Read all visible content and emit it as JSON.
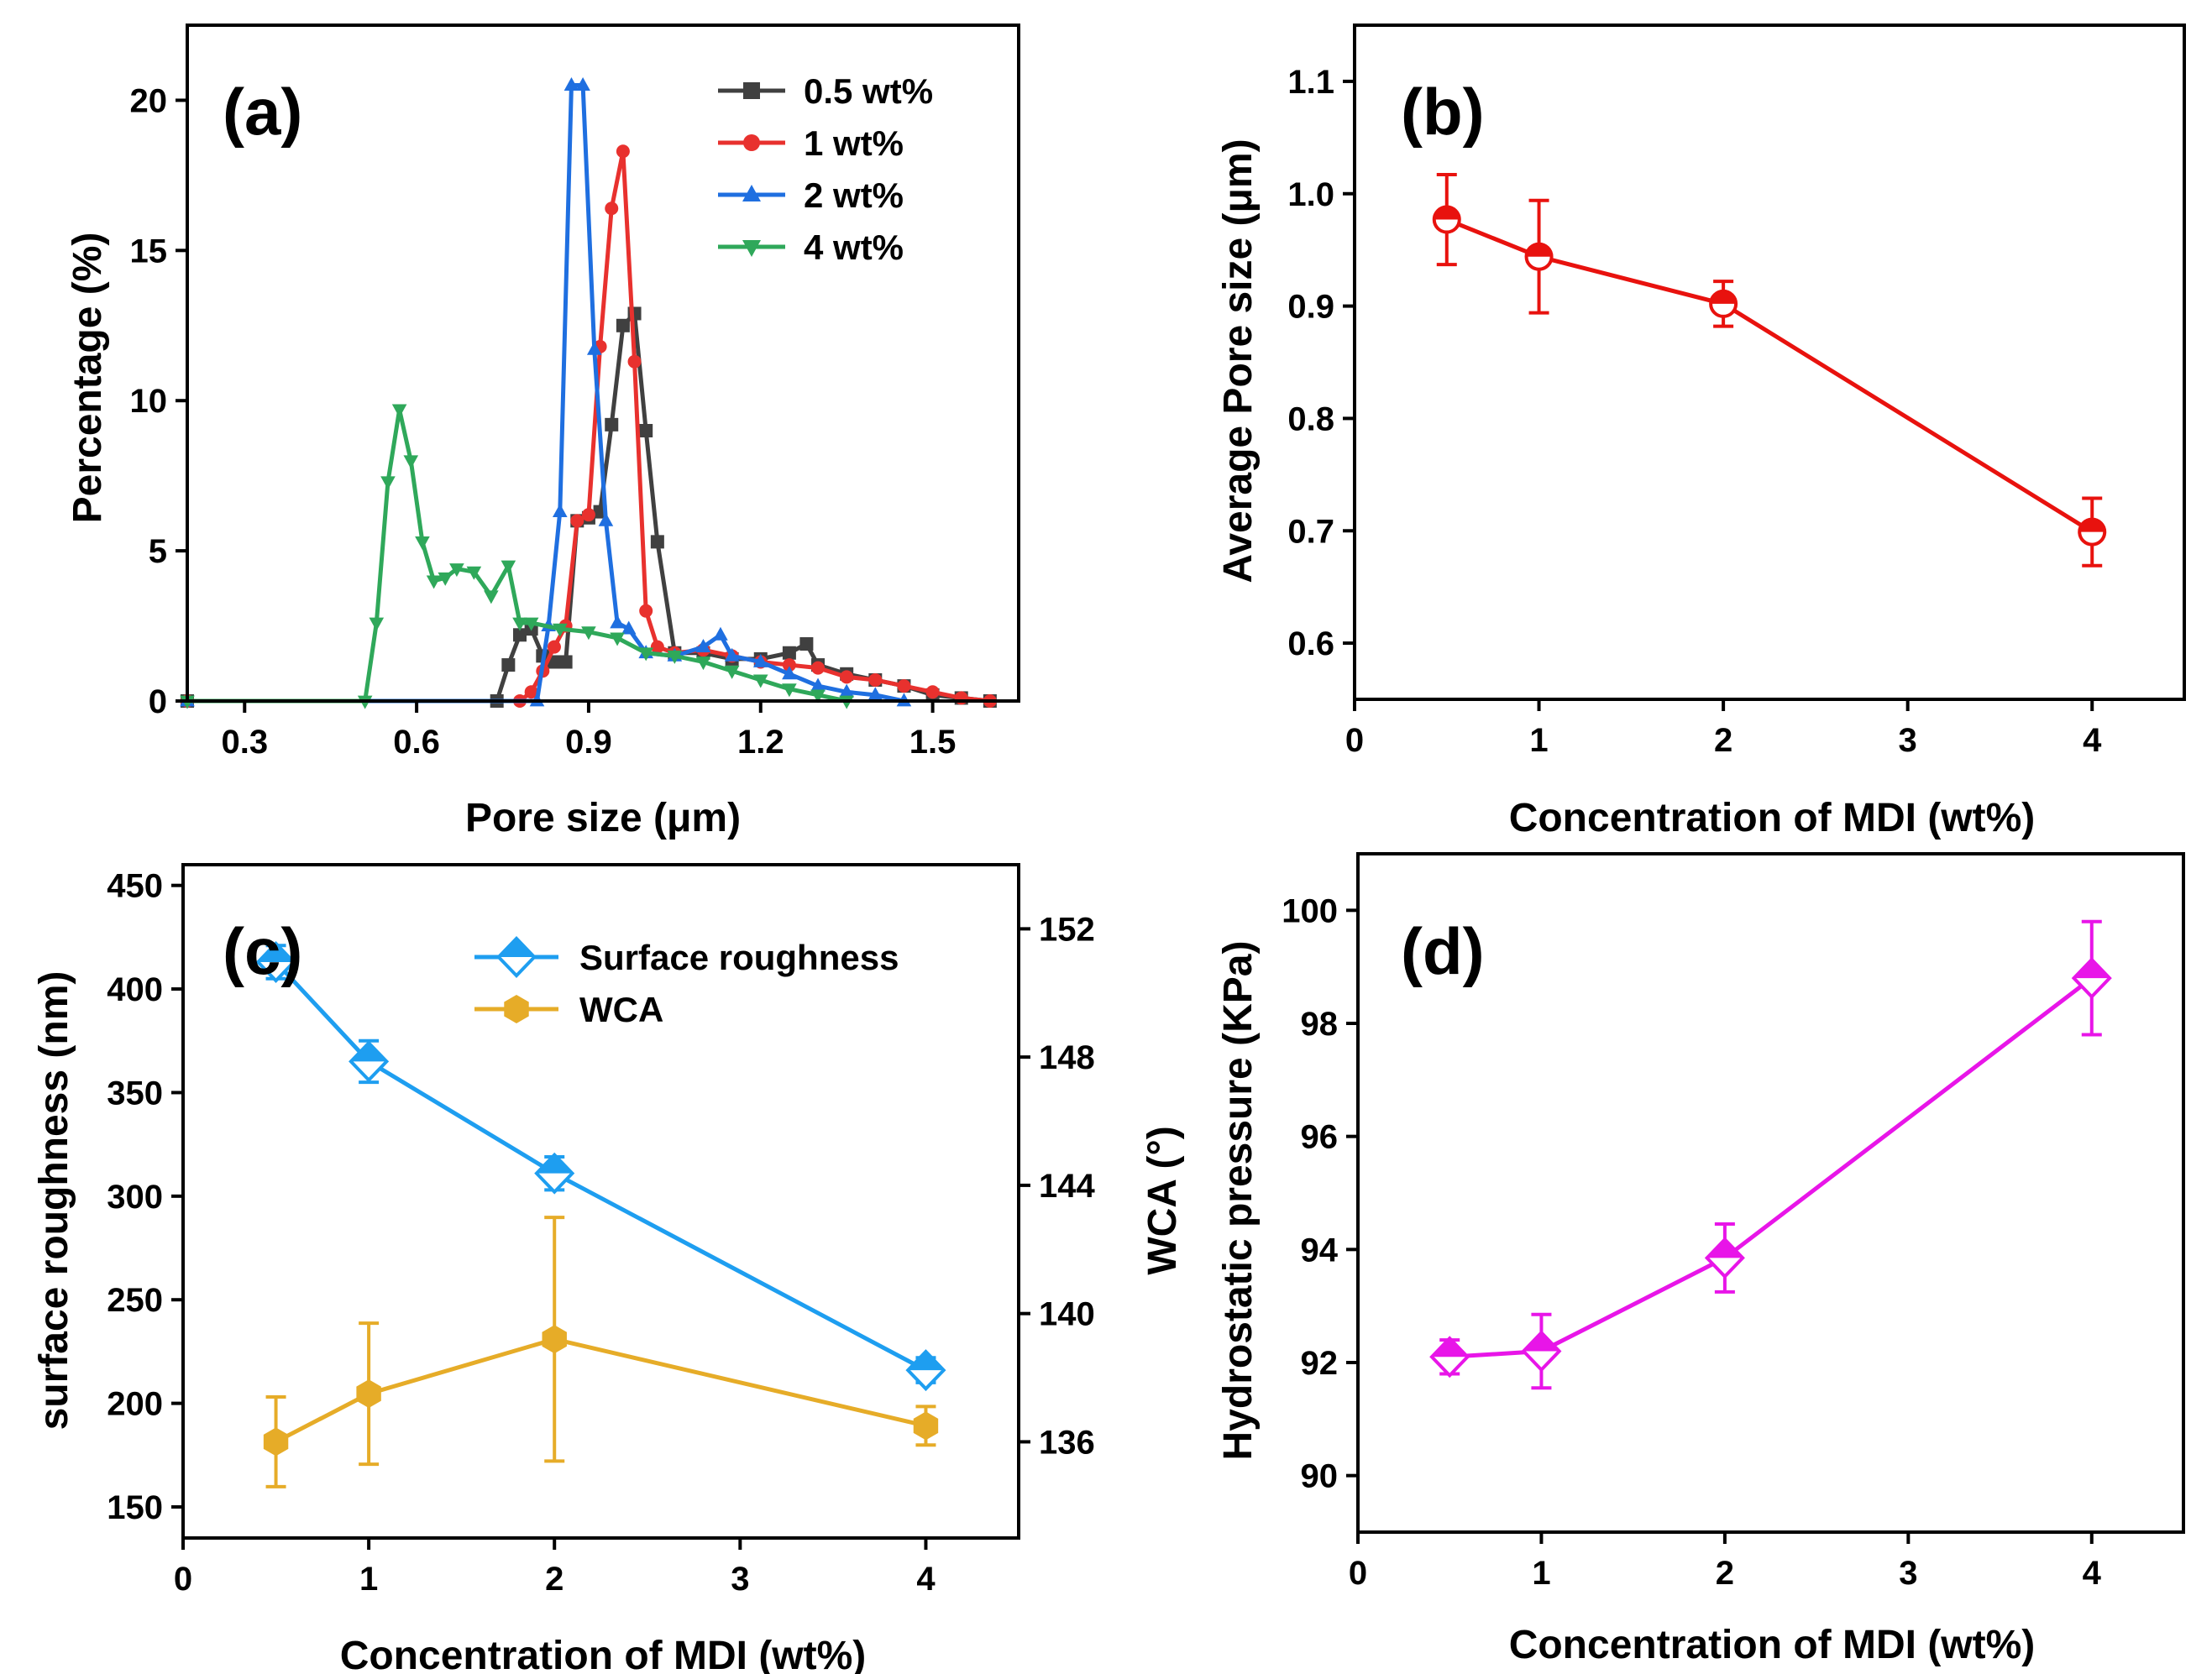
{
  "chart_data": [
    {
      "id": "a",
      "type": "line",
      "panel_label": "(a)",
      "xlabel": "Pore size (μm)",
      "ylabel": "Percentage (%)",
      "xlim": [
        0.2,
        1.65
      ],
      "ylim": [
        0,
        22.5
      ],
      "xticks": [
        0.3,
        0.6,
        0.9,
        1.2,
        1.5
      ],
      "xtick_labels": [
        "0.3",
        "0.6",
        "0.9",
        "1.2",
        "1.5"
      ],
      "yticks": [
        0,
        5,
        10,
        15,
        20
      ],
      "ytick_labels": [
        "0",
        "5",
        "10",
        "15",
        "20"
      ],
      "legend_position": "top-right",
      "series": [
        {
          "name": "0.5 wt%",
          "color": "#404040",
          "marker": "square",
          "x": [
            0.2,
            0.74,
            0.76,
            0.78,
            0.8,
            0.82,
            0.84,
            0.86,
            0.88,
            0.9,
            0.92,
            0.94,
            0.96,
            0.98,
            1.0,
            1.02,
            1.05,
            1.1,
            1.15,
            1.2,
            1.25,
            1.28,
            1.3,
            1.35,
            1.4,
            1.45,
            1.5,
            1.55,
            1.6
          ],
          "y": [
            0,
            0,
            1.2,
            2.2,
            2.4,
            1.5,
            1.3,
            1.3,
            6.0,
            6.1,
            6.3,
            9.2,
            12.5,
            12.9,
            9.0,
            5.3,
            1.6,
            1.6,
            1.4,
            1.4,
            1.6,
            1.9,
            1.2,
            0.9,
            0.7,
            0.5,
            0.2,
            0.1,
            0
          ]
        },
        {
          "name": "1 wt%",
          "color": "#e8312e",
          "marker": "circle",
          "x": [
            0.2,
            0.78,
            0.8,
            0.82,
            0.84,
            0.86,
            0.88,
            0.9,
            0.92,
            0.94,
            0.96,
            0.98,
            1.0,
            1.02,
            1.05,
            1.1,
            1.15,
            1.2,
            1.25,
            1.3,
            1.35,
            1.4,
            1.45,
            1.5,
            1.55,
            1.6
          ],
          "y": [
            0,
            0,
            0.3,
            1.0,
            1.8,
            2.5,
            6.0,
            6.2,
            11.8,
            16.4,
            18.3,
            11.3,
            3.0,
            1.8,
            1.6,
            1.7,
            1.5,
            1.3,
            1.2,
            1.1,
            0.8,
            0.7,
            0.5,
            0.3,
            0.1,
            0
          ]
        },
        {
          "name": "2 wt%",
          "color": "#1f6fe0",
          "marker": "triangle-up",
          "x": [
            0.2,
            0.81,
            0.83,
            0.85,
            0.87,
            0.89,
            0.91,
            0.93,
            0.95,
            0.97,
            1.0,
            1.05,
            1.1,
            1.13,
            1.15,
            1.2,
            1.25,
            1.3,
            1.35,
            1.4,
            1.45
          ],
          "y": [
            0,
            0,
            2.5,
            6.3,
            20.5,
            20.5,
            11.7,
            6.0,
            2.6,
            2.4,
            1.6,
            1.5,
            1.8,
            2.2,
            1.5,
            1.3,
            0.9,
            0.5,
            0.3,
            0.2,
            0
          ]
        },
        {
          "name": "4 wt%",
          "color": "#2fa85a",
          "marker": "triangle-down",
          "x": [
            0.2,
            0.51,
            0.53,
            0.55,
            0.57,
            0.59,
            0.61,
            0.63,
            0.65,
            0.67,
            0.7,
            0.73,
            0.76,
            0.78,
            0.8,
            0.85,
            0.9,
            0.95,
            1.0,
            1.05,
            1.1,
            1.15,
            1.2,
            1.25,
            1.3,
            1.35
          ],
          "y": [
            0,
            0,
            2.6,
            7.3,
            9.7,
            8.0,
            5.3,
            4.0,
            4.1,
            4.4,
            4.3,
            3.5,
            4.5,
            2.6,
            2.6,
            2.4,
            2.3,
            2.1,
            1.6,
            1.5,
            1.3,
            1.0,
            0.7,
            0.4,
            0.2,
            0
          ]
        }
      ]
    },
    {
      "id": "b",
      "type": "line",
      "panel_label": "(b)",
      "xlabel": "Concentration of MDI (wt%)",
      "ylabel": "Average Pore size (μm)",
      "xlim": [
        0,
        4.5
      ],
      "ylim": [
        0.55,
        1.15
      ],
      "xticks": [
        0,
        1,
        2,
        3,
        4
      ],
      "xtick_labels": [
        "0",
        "1",
        "2",
        "3",
        "4"
      ],
      "yticks": [
        0.6,
        0.7,
        0.8,
        0.9,
        1.0,
        1.1
      ],
      "ytick_labels": [
        "0.6",
        "0.7",
        "0.8",
        "0.9",
        "1.0",
        "1.1"
      ],
      "series": [
        {
          "name": "Average pore size",
          "color": "#e8120e",
          "marker": "circle-half",
          "x": [
            0.5,
            1,
            2,
            4
          ],
          "y": [
            0.977,
            0.944,
            0.902,
            0.699
          ],
          "err": [
            0.04,
            0.05,
            0.02,
            0.03
          ]
        }
      ]
    },
    {
      "id": "c",
      "type": "line",
      "panel_label": "(c)",
      "xlabel": "Concentration of MDI  (wt%)",
      "ylabel": "surface roughness (nm)",
      "ylabel_right": "WCA (°)",
      "xlim": [
        0,
        4.5
      ],
      "ylim": [
        135,
        460
      ],
      "ylim_right": [
        133,
        154
      ],
      "xticks": [
        0,
        1,
        2,
        3,
        4
      ],
      "xtick_labels": [
        "0",
        "1",
        "2",
        "3",
        "4"
      ],
      "yticks": [
        150,
        200,
        250,
        300,
        350,
        400,
        450
      ],
      "ytick_labels": [
        "150",
        "200",
        "250",
        "300",
        "350",
        "400",
        "450"
      ],
      "yticks_right": [
        136,
        140,
        144,
        148,
        152
      ],
      "ytick_labels_right": [
        "136",
        "140",
        "144",
        "148",
        "152"
      ],
      "legend_position": "top-right",
      "series": [
        {
          "name": "Surface roughness",
          "axis": "left",
          "color": "#1e9ef0",
          "marker": "diamond-half",
          "x": [
            0.5,
            1,
            2,
            4
          ],
          "y": [
            413,
            365,
            311,
            216
          ],
          "err": [
            8,
            10,
            8,
            6
          ]
        },
        {
          "name": "WCA",
          "axis": "right",
          "color": "#e6ac28",
          "marker": "hexagon",
          "x": [
            0.5,
            1,
            2,
            4
          ],
          "y": [
            136.0,
            137.5,
            139.2,
            136.5
          ],
          "err": [
            1.4,
            2.2,
            3.8,
            0.6
          ]
        }
      ]
    },
    {
      "id": "d",
      "type": "line",
      "panel_label": "(d)",
      "xlabel": "Concentration of MDI (wt%)",
      "ylabel": "Hydrostatic pressure (KPa)",
      "xlim": [
        0,
        4.5
      ],
      "ylim": [
        89,
        101
      ],
      "xticks": [
        0,
        1,
        2,
        3,
        4
      ],
      "xtick_labels": [
        "0",
        "1",
        "2",
        "3",
        "4"
      ],
      "yticks": [
        90,
        92,
        94,
        96,
        98,
        100
      ],
      "ytick_labels": [
        "90",
        "92",
        "94",
        "96",
        "98",
        "100"
      ],
      "series": [
        {
          "name": "Hydrostatic pressure",
          "color": "#e815e8",
          "marker": "diamond-half",
          "x": [
            0.5,
            1,
            2,
            4
          ],
          "y": [
            92.1,
            92.2,
            93.85,
            98.8
          ],
          "err": [
            0.3,
            0.65,
            0.6,
            1.0
          ]
        }
      ]
    }
  ]
}
